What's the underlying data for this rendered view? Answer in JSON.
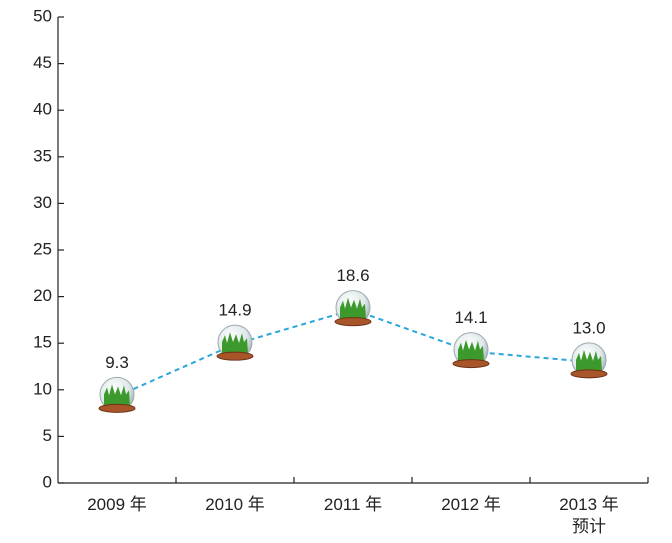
{
  "chart_data": {
    "type": "line",
    "categories": [
      "2009 年",
      "2010 年",
      "2011 年",
      "2012 年",
      "2013 年\n预计"
    ],
    "values": [
      9.3,
      14.9,
      18.6,
      14.1,
      13.0
    ],
    "value_labels": [
      "9.3",
      "14.9",
      "18.6",
      "14.1",
      "13.0"
    ],
    "color": "#2aa6dc",
    "ylim": [
      0,
      50
    ],
    "yticks": [
      0,
      5,
      10,
      15,
      20,
      25,
      30,
      35,
      40,
      45,
      50
    ]
  }
}
